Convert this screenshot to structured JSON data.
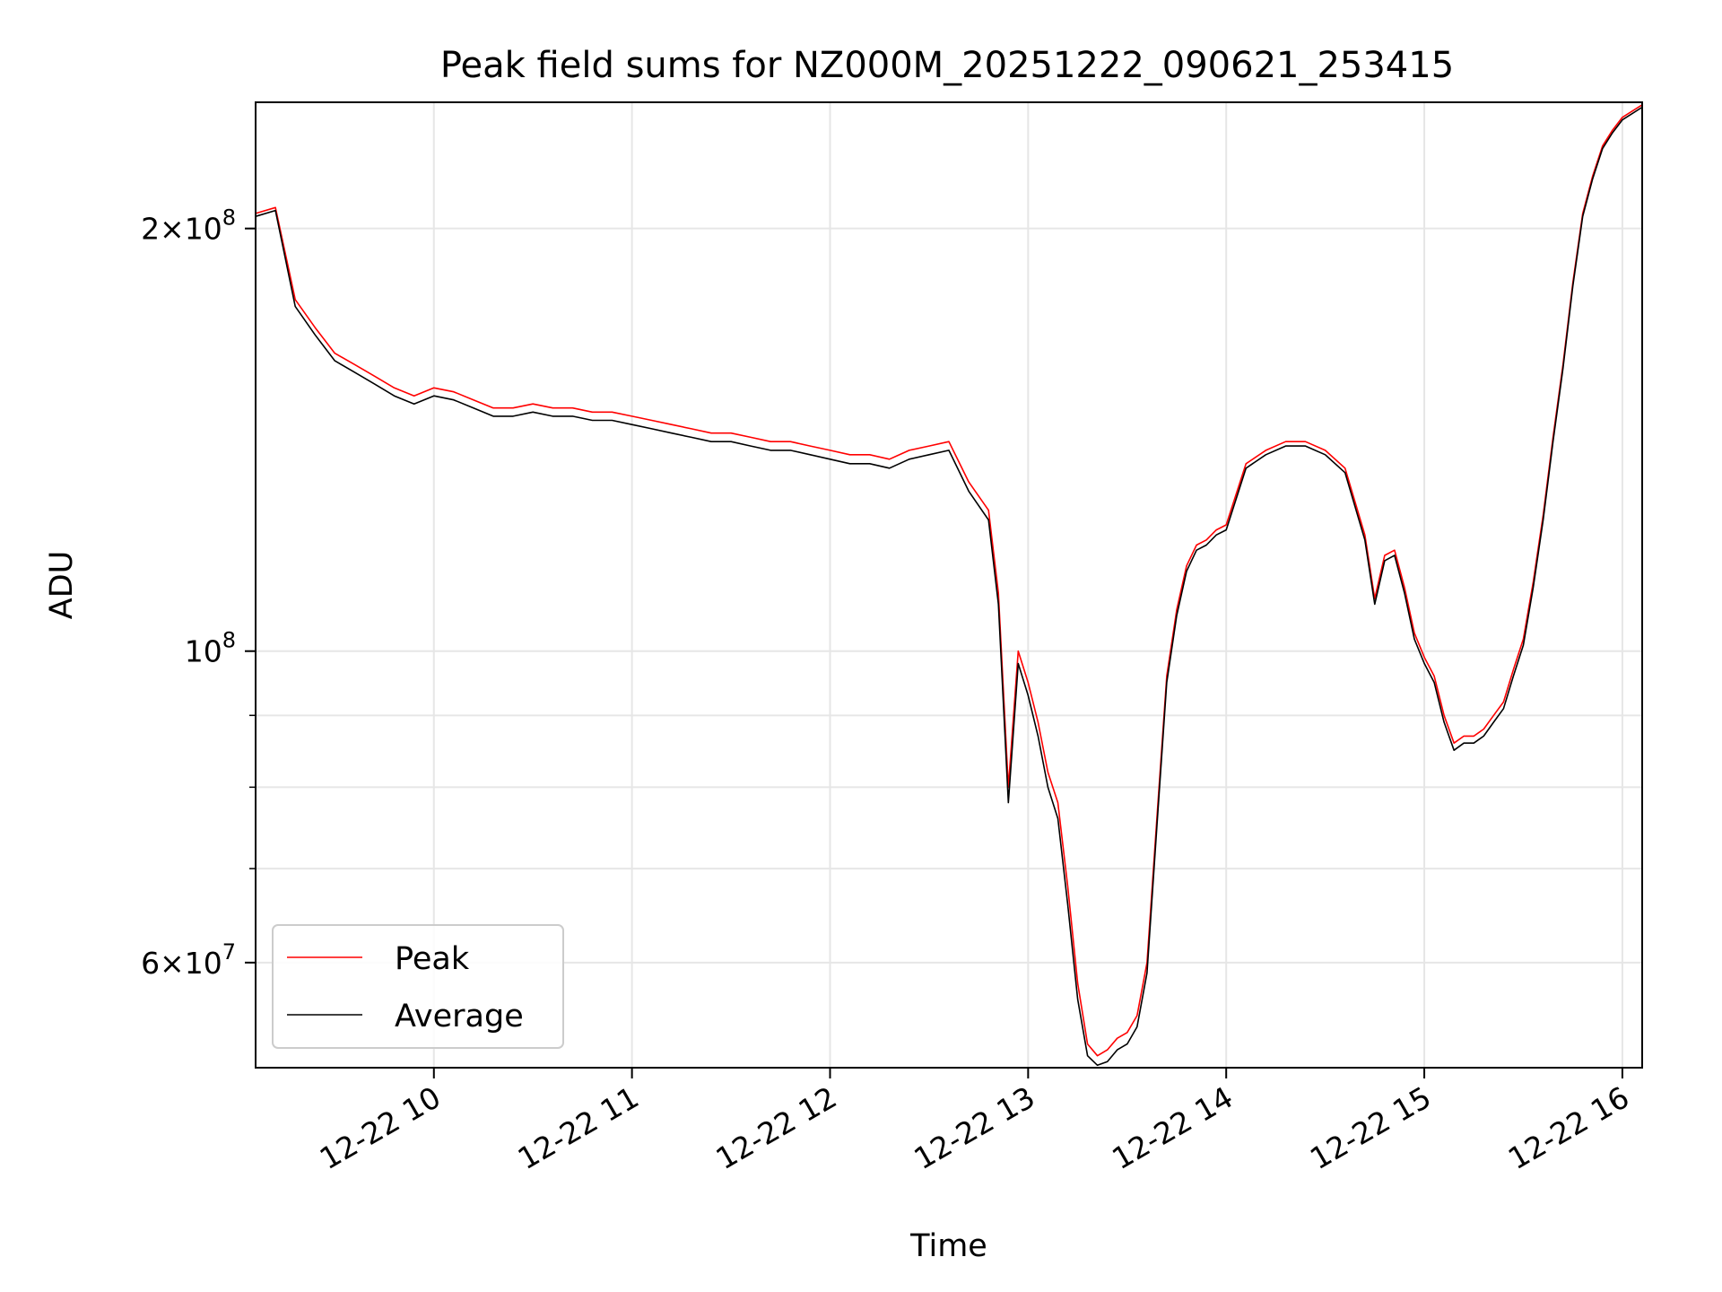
{
  "chart_data": {
    "type": "line",
    "title": "Peak field sums for NZ000M_20251222_090621_253415",
    "xlabel": "Time",
    "ylabel": "ADU",
    "yscale": "log",
    "xlim": [
      "2025-12-22 09:06",
      "2025-12-22 16:06"
    ],
    "ylim": [
      50500000,
      246000000
    ],
    "x_ticks": [
      "12-22 10",
      "12-22 11",
      "12-22 12",
      "12-22 13",
      "12-22 14",
      "12-22 15",
      "12-22 16"
    ],
    "y_tick_labels": [
      {
        "value": 200000000,
        "mantissa": "2",
        "exponent": "8"
      },
      {
        "value": 100000000,
        "mantissa": "",
        "exponent": "8"
      },
      {
        "value": 60000000,
        "mantissa": "6",
        "exponent": "7"
      }
    ],
    "grid": true,
    "legend_position": "lower-left",
    "colors": {
      "peak": "#ff0000",
      "average": "#000000",
      "grid": "#e6e6e6"
    },
    "x": [
      "09:06",
      "09:12",
      "09:18",
      "09:24",
      "09:30",
      "09:36",
      "09:42",
      "09:48",
      "09:54",
      "10:00",
      "10:06",
      "10:12",
      "10:18",
      "10:24",
      "10:30",
      "10:36",
      "10:42",
      "10:48",
      "10:54",
      "11:00",
      "11:06",
      "11:12",
      "11:18",
      "11:24",
      "11:30",
      "11:36",
      "11:42",
      "11:48",
      "11:54",
      "12:00",
      "12:06",
      "12:12",
      "12:18",
      "12:24",
      "12:30",
      "12:36",
      "12:42",
      "12:48",
      "12:51",
      "12:54",
      "12:57",
      "13:00",
      "13:03",
      "13:06",
      "13:09",
      "13:12",
      "13:15",
      "13:18",
      "13:21",
      "13:24",
      "13:27",
      "13:30",
      "13:33",
      "13:36",
      "13:39",
      "13:42",
      "13:45",
      "13:48",
      "13:51",
      "13:54",
      "13:57",
      "14:00",
      "14:06",
      "14:12",
      "14:18",
      "14:24",
      "14:30",
      "14:36",
      "14:42",
      "14:45",
      "14:48",
      "14:51",
      "14:54",
      "14:57",
      "15:00",
      "15:03",
      "15:06",
      "15:09",
      "15:12",
      "15:15",
      "15:18",
      "15:21",
      "15:24",
      "15:27",
      "15:30",
      "15:33",
      "15:36",
      "15:39",
      "15:42",
      "15:45",
      "15:48",
      "15:51",
      "15:54",
      "15:57",
      "16:00",
      "16:06"
    ],
    "series": [
      {
        "name": "Peak",
        "values": [
          205000000,
          207000000,
          178000000,
          170000000,
          163000000,
          160000000,
          157000000,
          154000000,
          152000000,
          154000000,
          153000000,
          151000000,
          149000000,
          149000000,
          150000000,
          149000000,
          149000000,
          148000000,
          148000000,
          147000000,
          146000000,
          145000000,
          144000000,
          143000000,
          143000000,
          142000000,
          141000000,
          141000000,
          140000000,
          139000000,
          138000000,
          138000000,
          137000000,
          139000000,
          140000000,
          141000000,
          132000000,
          126000000,
          110000000,
          80000000,
          100000000,
          95000000,
          89000000,
          82000000,
          78000000,
          68000000,
          58000000,
          52500000,
          51500000,
          52000000,
          53000000,
          53500000,
          55000000,
          60000000,
          76000000,
          96000000,
          107000000,
          115000000,
          119000000,
          120000000,
          122000000,
          123000000,
          136000000,
          139000000,
          141000000,
          141000000,
          139000000,
          135000000,
          121000000,
          109000000,
          117000000,
          118000000,
          111000000,
          103000000,
          99000000,
          96000000,
          90000000,
          86000000,
          87000000,
          87000000,
          88000000,
          90000000,
          92000000,
          97000000,
          102000000,
          112000000,
          125000000,
          142000000,
          160000000,
          183000000,
          205000000,
          218000000,
          229000000,
          235000000,
          240000000,
          245000000
        ]
      },
      {
        "name": "Average",
        "values": [
          204000000,
          206000000,
          176000000,
          168000000,
          161000000,
          158000000,
          155000000,
          152000000,
          150000000,
          152000000,
          151000000,
          149000000,
          147000000,
          147000000,
          148000000,
          147000000,
          147000000,
          146000000,
          146000000,
          145000000,
          144000000,
          143000000,
          142000000,
          141000000,
          141000000,
          140000000,
          139000000,
          139000000,
          138000000,
          137000000,
          136000000,
          136000000,
          135000000,
          137000000,
          138000000,
          139000000,
          130000000,
          124000000,
          108000000,
          78000000,
          98000000,
          93000000,
          87000000,
          80000000,
          76000000,
          66000000,
          56500000,
          51500000,
          50700000,
          51000000,
          52000000,
          52500000,
          54000000,
          59000000,
          75000000,
          95000000,
          106000000,
          114000000,
          118000000,
          119000000,
          121000000,
          122000000,
          135000000,
          138000000,
          140000000,
          140000000,
          138000000,
          134000000,
          120000000,
          108000000,
          116000000,
          117000000,
          110000000,
          102000000,
          98000000,
          95000000,
          89000000,
          85000000,
          86000000,
          86000000,
          87000000,
          89000000,
          91000000,
          96000000,
          101000000,
          111000000,
          124000000,
          141000000,
          159000000,
          182000000,
          204000000,
          217000000,
          228000000,
          234000000,
          239000000,
          244000000
        ]
      }
    ]
  }
}
